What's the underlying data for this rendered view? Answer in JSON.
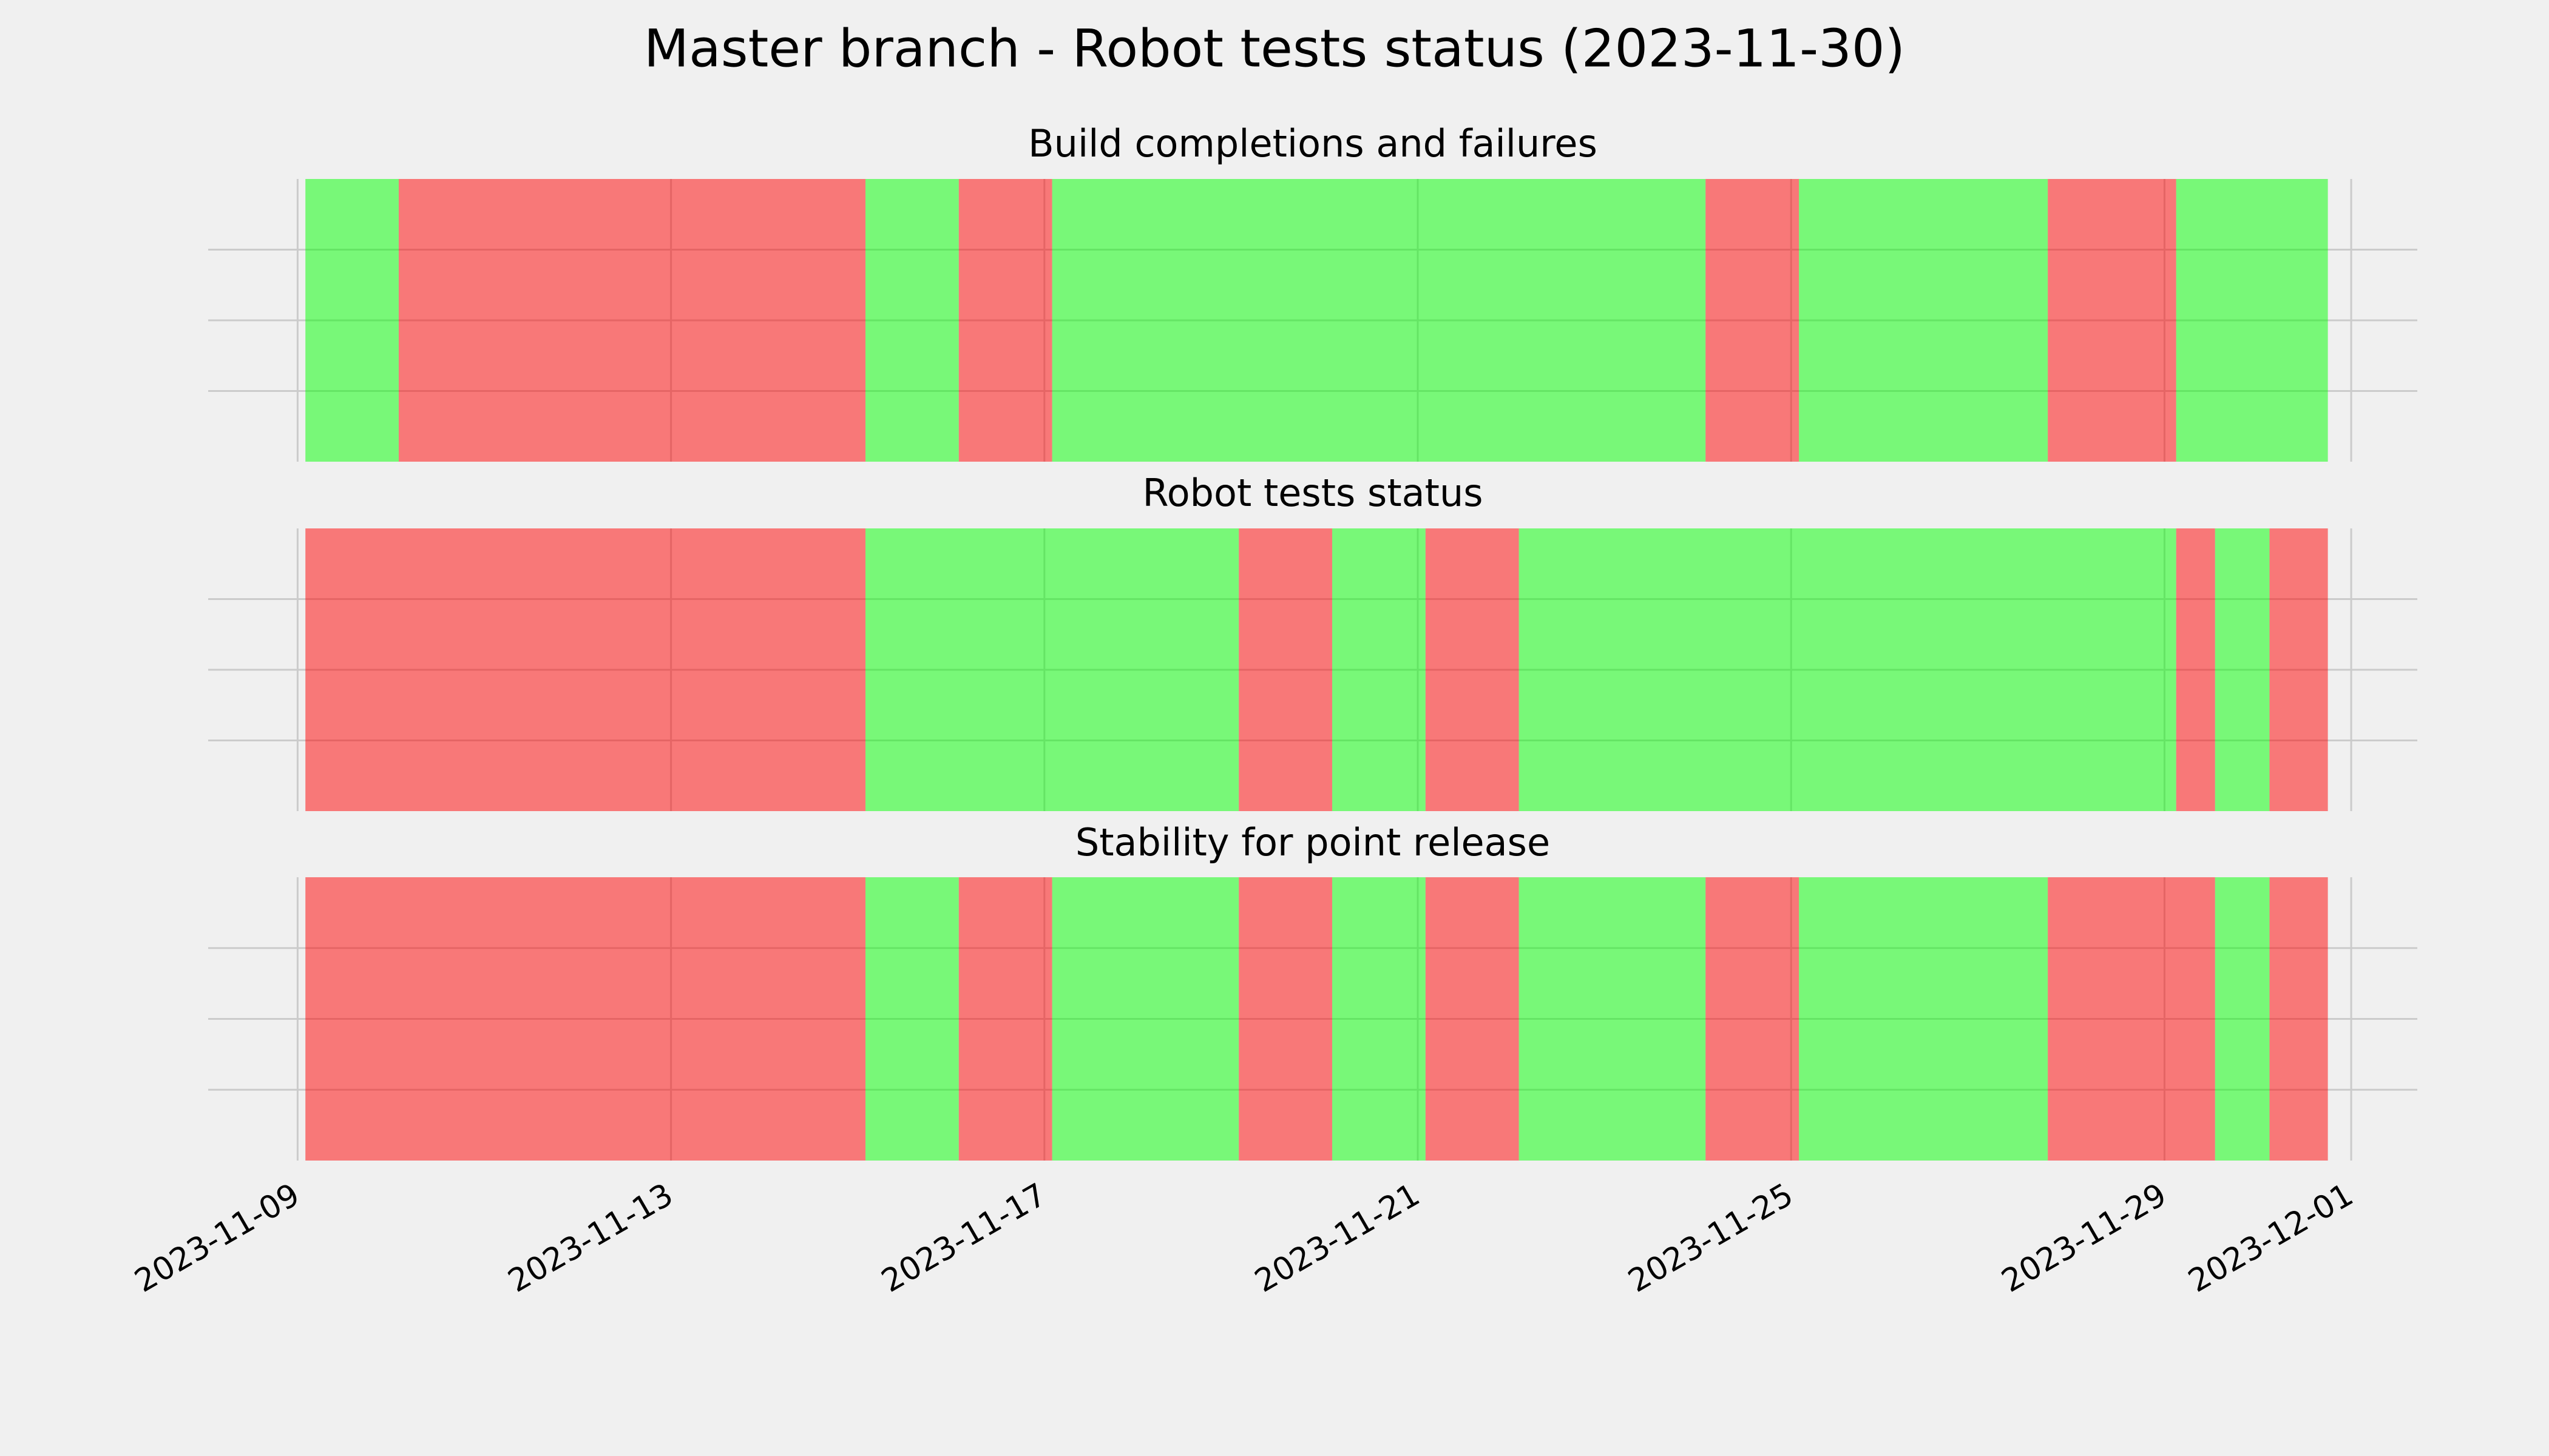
{
  "title": "Master branch - Robot tests status (2023-11-30)",
  "chart_data": [
    {
      "type": "timeline",
      "title": "Build completions and failures",
      "xlim": [
        "2023-11-08T01:00",
        "2023-12-01T17:00"
      ],
      "ylim": [
        0,
        1
      ],
      "yticks": [
        0.25,
        0.5,
        0.75
      ],
      "grid": true,
      "alpha": 0.5,
      "start": [
        "2023-11-09T02:00",
        "2023-11-10T02:00",
        "2023-11-15T02:00",
        "2023-11-16T02:00",
        "2023-11-17T02:00",
        "2023-11-24T02:00",
        "2023-11-25T02:00",
        "2023-11-27T18:00",
        "2023-11-29T03:00"
      ],
      "end": [
        "2023-11-10T02:00",
        "2023-11-15T02:00",
        "2023-11-16T02:00",
        "2023-11-17T02:00",
        "2023-11-24T02:00",
        "2023-11-25T02:00",
        "2023-11-27T18:00",
        "2023-11-29T03:00",
        "2023-11-30T18:00"
      ],
      "colors": [
        "#00ff00",
        "#ff0000",
        "#00ff00",
        "#ff0000",
        "#00ff00",
        "#ff0000",
        "#00ff00",
        "#ff0000",
        "#00ff00"
      ]
    },
    {
      "type": "timeline",
      "title": "Robot tests status",
      "xlim": [
        "2023-11-08T01:00",
        "2023-12-01T17:00"
      ],
      "ylim": [
        0,
        1
      ],
      "yticks": [
        0.25,
        0.5,
        0.75
      ],
      "grid": true,
      "alpha": 0.5,
      "start": [
        "2023-11-09T02:00",
        "2023-11-15T02:00",
        "2023-11-19T02:00",
        "2023-11-20T02:00",
        "2023-11-21T02:00",
        "2023-11-22T02:00",
        "2023-11-29T03:00",
        "2023-11-29T13:00",
        "2023-11-30T03:00"
      ],
      "end": [
        "2023-11-15T02:00",
        "2023-11-19T02:00",
        "2023-11-20T02:00",
        "2023-11-21T02:00",
        "2023-11-22T02:00",
        "2023-11-29T03:00",
        "2023-11-29T13:00",
        "2023-11-30T03:00",
        "2023-11-30T18:00"
      ],
      "colors": [
        "#ff0000",
        "#00ff00",
        "#ff0000",
        "#00ff00",
        "#ff0000",
        "#00ff00",
        "#ff0000",
        "#00ff00",
        "#ff0000"
      ]
    },
    {
      "type": "timeline",
      "title": "Stability for point release",
      "xlim": [
        "2023-11-08T01:00",
        "2023-12-01T17:00"
      ],
      "ylim": [
        0,
        1
      ],
      "yticks": [
        0.25,
        0.5,
        0.75
      ],
      "grid": true,
      "alpha": 0.5,
      "xticks": [
        "2023-11-09",
        "2023-11-13",
        "2023-11-17",
        "2023-11-21",
        "2023-11-25",
        "2023-11-29",
        "2023-12-01"
      ],
      "start": [
        "2023-11-09T02:00",
        "2023-11-15T02:00",
        "2023-11-16T02:00",
        "2023-11-17T02:00",
        "2023-11-19T02:00",
        "2023-11-20T02:00",
        "2023-11-21T02:00",
        "2023-11-22T02:00",
        "2023-11-24T02:00",
        "2023-11-25T02:00",
        "2023-11-27T18:00",
        "2023-11-29T13:00",
        "2023-11-30T03:00"
      ],
      "end": [
        "2023-11-15T02:00",
        "2023-11-16T02:00",
        "2023-11-17T02:00",
        "2023-11-19T02:00",
        "2023-11-20T02:00",
        "2023-11-21T02:00",
        "2023-11-22T02:00",
        "2023-11-24T02:00",
        "2023-11-25T02:00",
        "2023-11-27T18:00",
        "2023-11-29T13:00",
        "2023-11-30T03:00",
        "2023-11-30T18:00"
      ],
      "colors": [
        "#ff0000",
        "#00ff00",
        "#ff0000",
        "#00ff00",
        "#ff0000",
        "#00ff00",
        "#ff0000",
        "#00ff00",
        "#ff0000",
        "#00ff00",
        "#ff0000",
        "#00ff00",
        "#ff0000"
      ]
    }
  ]
}
